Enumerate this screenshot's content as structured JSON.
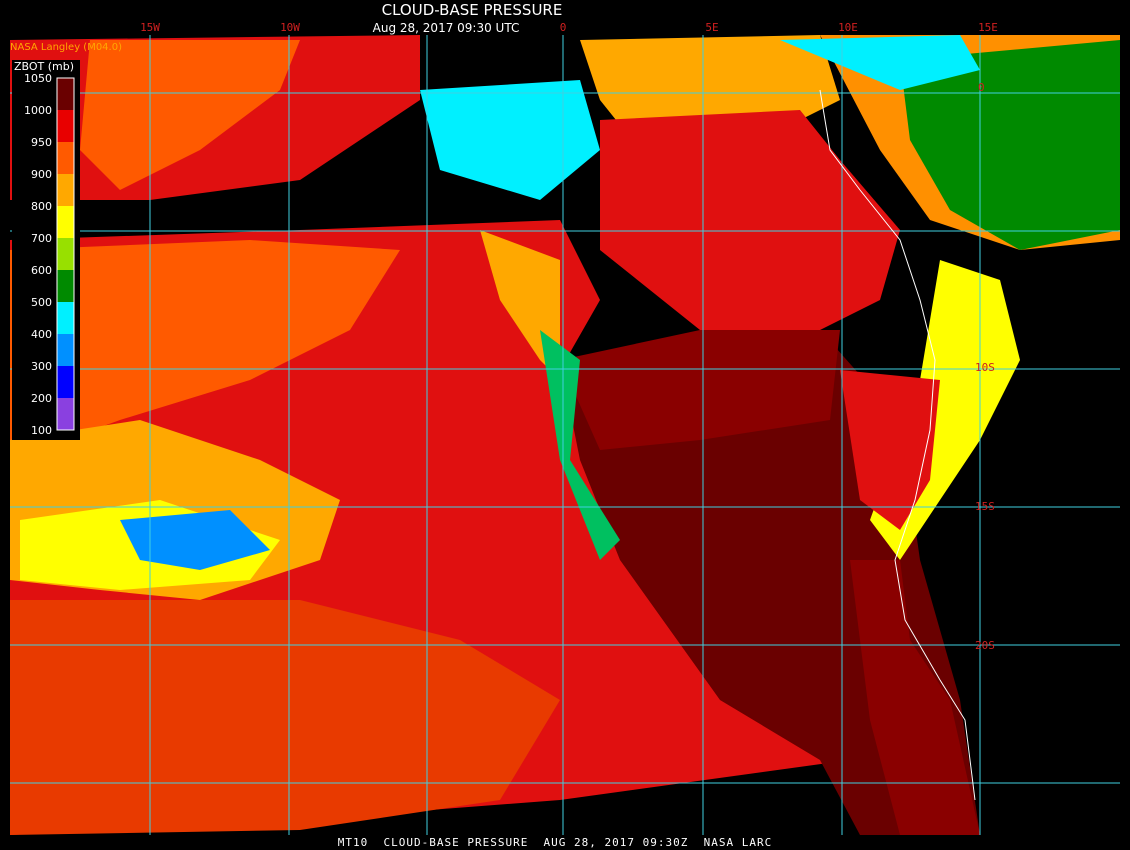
{
  "header": {
    "title": "CLOUD-BASE PRESSURE",
    "subtitle": "Aug 28, 2017 09:30 UTC",
    "source": "NASA Langley (M04.0)"
  },
  "legend": {
    "title": "ZBOT (mb)",
    "ticks": [
      1050,
      1000,
      950,
      900,
      800,
      700,
      600,
      500,
      400,
      300,
      200,
      100
    ],
    "colors": [
      "#6a0000",
      "#e80000",
      "#ff5a00",
      "#ffa800",
      "#ffff00",
      "#98e000",
      "#008a00",
      "#00f0ff",
      "#0090ff",
      "#0000ff",
      "#8a40e0"
    ]
  },
  "grid": {
    "lon_labels": [
      "15W",
      "10W",
      "0",
      "5E",
      "10E",
      "15E"
    ],
    "lat_labels": [
      "0",
      "10S",
      "15S",
      "20S"
    ]
  },
  "footer": "MT10  CLOUD-BASE PRESSURE  AUG 28, 2017 09:30Z  NASA LARC"
}
